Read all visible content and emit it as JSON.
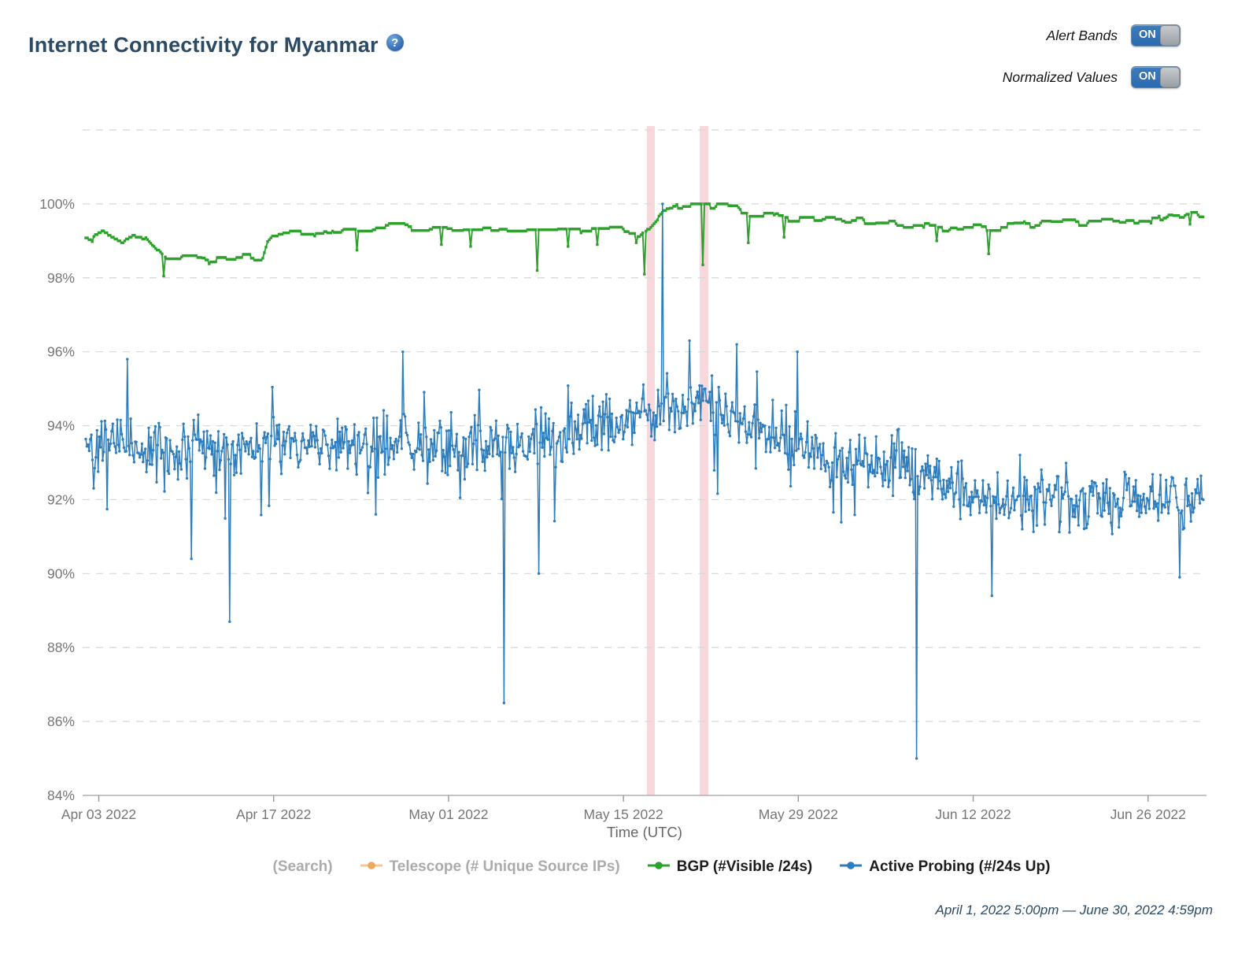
{
  "header": {
    "title": "Internet Connectivity for Myanmar",
    "help_icon": "question-mark",
    "toggles": [
      {
        "label": "Alert Bands",
        "state": "ON"
      },
      {
        "label": "Normalized Values",
        "state": "ON"
      }
    ]
  },
  "footer": {
    "time_range": "April 1, 2022 5:00pm — June 30, 2022 4:59pm"
  },
  "colors": {
    "title": "#2c4a63",
    "accent_blue": "#2f72b5",
    "grid": "#d7d7d7",
    "axis": "#b0b0b0",
    "tick_label": "#767676",
    "alert_band": "#e57383",
    "legend_active": "#1c1c1c",
    "legend_disabled": "#ababab"
  },
  "chart_data": {
    "type": "line",
    "title": "Internet Connectivity for Myanmar",
    "xlabel": "Time (UTC)",
    "ylabel": "",
    "x_unit_days_since": "2022-04-01 17:00 UTC",
    "x_range_days": [
      0,
      90
    ],
    "ylim": [
      84,
      102.3
    ],
    "y_tick_min": 84,
    "y_tick_max": 100,
    "y_grid_max": 102,
    "y_tick_step": 2,
    "y_tick_suffix": "%",
    "grid": "horizontal-dashed",
    "legend_position": "bottom",
    "x_ticks": [
      {
        "day": 1.2917,
        "label": "Apr 03 2022"
      },
      {
        "day": 15.2917,
        "label": "Apr 17 2022"
      },
      {
        "day": 29.2917,
        "label": "May 01 2022"
      },
      {
        "day": 43.2917,
        "label": "May 15 2022"
      },
      {
        "day": 57.2917,
        "label": "May 29 2022"
      },
      {
        "day": 71.2917,
        "label": "Jun 12 2022"
      },
      {
        "day": 85.2917,
        "label": "Jun 26 2022"
      }
    ],
    "alert_bands": [
      {
        "from_day": 45.17,
        "to_day": 45.8
      },
      {
        "from_day": 49.4,
        "to_day": 50.1
      }
    ],
    "band_opacity": 0.28,
    "series": [
      {
        "name": "(Search)",
        "visible": false,
        "color": "#a9a9a9",
        "marker": "none"
      },
      {
        "name": "Telescope (# Unique Source IPs)",
        "visible": false,
        "color": "#eda75f",
        "line_color": "#f4c894",
        "marker": "circle"
      },
      {
        "name": "BGP (#Visible /24s)",
        "visible": true,
        "color": "#2ea12c",
        "line_color": "#2ea12c",
        "marker": "square",
        "style": "step",
        "sample_step_days": 0.13,
        "texture": {
          "seed": 1337,
          "offset_quantum": 0.035,
          "hold_min": 4,
          "hold_span": 9
        },
        "levels": [
          [
            0,
            99.2
          ],
          [
            0.8,
            99.05
          ],
          [
            1.6,
            99.2
          ],
          [
            2.4,
            99.1
          ],
          [
            3.2,
            98.95
          ],
          [
            4.0,
            99.15
          ],
          [
            5.0,
            99.05
          ],
          [
            5.8,
            98.8
          ],
          [
            6.8,
            98.55
          ],
          [
            9.0,
            98.6
          ],
          [
            10,
            98.45
          ],
          [
            11,
            98.55
          ],
          [
            12,
            98.5
          ],
          [
            13,
            98.6
          ],
          [
            14.4,
            98.55
          ],
          [
            14.8,
            99.05
          ],
          [
            15.2,
            99.2
          ],
          [
            17,
            99.3
          ],
          [
            19,
            99.2
          ],
          [
            21,
            99.35
          ],
          [
            23,
            99.3
          ],
          [
            25,
            99.4
          ],
          [
            27,
            99.35
          ],
          [
            29,
            99.4
          ],
          [
            31,
            99.3
          ],
          [
            33,
            99.35
          ],
          [
            35,
            99.3
          ],
          [
            37,
            99.3
          ],
          [
            39,
            99.25
          ],
          [
            41,
            99.3
          ],
          [
            43,
            99.3
          ],
          [
            44.5,
            99.15
          ],
          [
            45.3,
            99.35
          ],
          [
            45.9,
            99.55
          ],
          [
            46.6,
            99.75
          ],
          [
            47.3,
            99.9
          ],
          [
            48.2,
            100.0
          ],
          [
            49.3,
            99.95
          ],
          [
            50.2,
            99.95
          ],
          [
            51,
            100.0
          ],
          [
            52.4,
            99.95
          ],
          [
            52.8,
            99.75
          ],
          [
            54,
            99.7
          ],
          [
            55,
            99.75
          ],
          [
            56.5,
            99.6
          ],
          [
            58,
            99.6
          ],
          [
            59,
            99.55
          ],
          [
            60,
            99.6
          ],
          [
            61,
            99.5
          ],
          [
            62,
            99.55
          ],
          [
            63,
            99.5
          ],
          [
            64,
            99.45
          ],
          [
            65,
            99.5
          ],
          [
            66,
            99.4
          ],
          [
            67,
            99.45
          ],
          [
            68,
            99.35
          ],
          [
            69,
            99.3
          ],
          [
            70,
            99.35
          ],
          [
            71,
            99.4
          ],
          [
            73,
            99.35
          ],
          [
            74,
            99.4
          ],
          [
            75,
            99.45
          ],
          [
            76,
            99.4
          ],
          [
            77,
            99.5
          ],
          [
            78,
            99.45
          ],
          [
            79,
            99.5
          ],
          [
            80,
            99.45
          ],
          [
            81,
            99.5
          ],
          [
            82,
            99.55
          ],
          [
            83,
            99.5
          ],
          [
            84,
            99.55
          ],
          [
            85,
            99.6
          ],
          [
            86,
            99.55
          ],
          [
            87,
            99.7
          ],
          [
            88,
            99.6
          ],
          [
            89,
            99.7
          ],
          [
            89.8,
            99.65
          ]
        ],
        "dips": [
          [
            6.46,
            98.05
          ],
          [
            21.9,
            98.75
          ],
          [
            28.7,
            98.9
          ],
          [
            31.0,
            98.85
          ],
          [
            36.4,
            98.2
          ],
          [
            38.9,
            98.85
          ],
          [
            41.2,
            98.9
          ],
          [
            44.3,
            98.95
          ],
          [
            44.95,
            98.1
          ],
          [
            49.63,
            98.35
          ],
          [
            53.3,
            98.95
          ],
          [
            56.2,
            99.1
          ],
          [
            68.4,
            99.0
          ],
          [
            72.5,
            98.65
          ],
          [
            88.7,
            99.45
          ]
        ]
      },
      {
        "name": "Active Probing (#/24s Up)",
        "visible": true,
        "color": "#2e7dbc",
        "line_color": "#2e7dbc",
        "marker": "circle",
        "style": "noisy-line",
        "sample_step_days": 0.09,
        "noise": {
          "seed": 42,
          "amplitude": 0.95,
          "down_spike_prob": 0.04,
          "down_spike_extra": 1.6,
          "up_spike_prob": 0.02,
          "up_spike_extra": 0.8,
          "clamp_low": 2.3,
          "clamp_high": 1.55
        },
        "baseline": [
          [
            0,
            93.6
          ],
          [
            3,
            93.5
          ],
          [
            6,
            93.3
          ],
          [
            9,
            93.4
          ],
          [
            12,
            93.3
          ],
          [
            15,
            93.5
          ],
          [
            18,
            93.4
          ],
          [
            21,
            93.5
          ],
          [
            24,
            93.4
          ],
          [
            27,
            93.5
          ],
          [
            30,
            93.3
          ],
          [
            33,
            93.5
          ],
          [
            36,
            93.6
          ],
          [
            39,
            93.8
          ],
          [
            41,
            93.9
          ],
          [
            43,
            94.15
          ],
          [
            45,
            94.35
          ],
          [
            47,
            94.55
          ],
          [
            49,
            94.6
          ],
          [
            51,
            94.45
          ],
          [
            53,
            94.2
          ],
          [
            55,
            93.9
          ],
          [
            57,
            93.5
          ],
          [
            59,
            93.2
          ],
          [
            61,
            93.0
          ],
          [
            63,
            92.9
          ],
          [
            65,
            92.95
          ],
          [
            67,
            92.85
          ],
          [
            68.5,
            92.5
          ],
          [
            70,
            92.2
          ],
          [
            72,
            92.0
          ],
          [
            74,
            92.05
          ],
          [
            76,
            92.0
          ],
          [
            78,
            92.1
          ],
          [
            80,
            91.9
          ],
          [
            82,
            92.0
          ],
          [
            84,
            91.9
          ],
          [
            86,
            92.0
          ],
          [
            88,
            91.95
          ],
          [
            89.8,
            92.25
          ]
        ],
        "anomalies": [
          [
            3.6,
            95.8
          ],
          [
            8.7,
            90.4
          ],
          [
            11.8,
            88.7
          ],
          [
            25.6,
            96.0
          ],
          [
            33.7,
            86.5
          ],
          [
            36.5,
            90.0
          ],
          [
            46.45,
            100.0
          ],
          [
            48.6,
            96.3
          ],
          [
            52.4,
            96.2
          ],
          [
            57.2,
            96.0
          ],
          [
            66.8,
            85.0
          ],
          [
            72.8,
            89.4
          ],
          [
            87.8,
            89.9
          ]
        ]
      }
    ]
  }
}
